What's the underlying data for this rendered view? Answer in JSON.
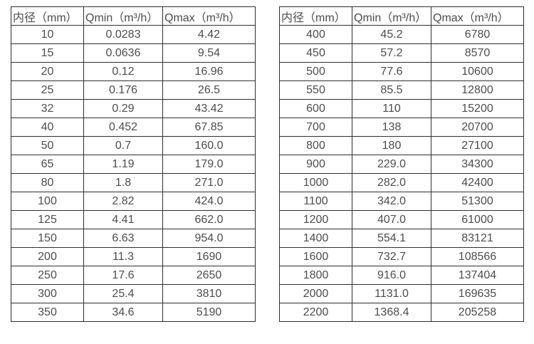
{
  "colors": {
    "background": "#ffffff",
    "border": "#2f2f2f",
    "text": "#4d4d4d"
  },
  "chart_data": [
    {
      "type": "table",
      "title": "",
      "columns": [
        "内径（mm）",
        "Qmin（m³/h）",
        "Qmax（m³/h）"
      ],
      "rows": [
        [
          "10",
          "0.0283",
          "4.42"
        ],
        [
          "15",
          "0.0636",
          "9.54"
        ],
        [
          "20",
          "0.12",
          "16.96"
        ],
        [
          "25",
          "0.176",
          "26.5"
        ],
        [
          "32",
          "0.29",
          "43.42"
        ],
        [
          "40",
          "0.452",
          "67.85"
        ],
        [
          "50",
          "0.7",
          "160.0"
        ],
        [
          "65",
          "1.19",
          "179.0"
        ],
        [
          "80",
          "1.8",
          "271.0"
        ],
        [
          "100",
          "2.82",
          "424.0"
        ],
        [
          "125",
          "4.41",
          "662.0"
        ],
        [
          "150",
          "6.63",
          "954.0"
        ],
        [
          "200",
          "11.3",
          "1690"
        ],
        [
          "250",
          "17.6",
          "2650"
        ],
        [
          "300",
          "25.4",
          "3810"
        ],
        [
          "350",
          "34.6",
          "5190"
        ]
      ]
    },
    {
      "type": "table",
      "title": "",
      "columns": [
        "内径（mm）",
        "Qmin（m³/h）",
        "Qmax（m³/h）"
      ],
      "rows": [
        [
          "400",
          "45.2",
          "6780"
        ],
        [
          "450",
          "57.2",
          "8570"
        ],
        [
          "500",
          "77.6",
          "10600"
        ],
        [
          "550",
          "85.5",
          "12800"
        ],
        [
          "600",
          "110",
          "15200"
        ],
        [
          "700",
          "138",
          "20700"
        ],
        [
          "800",
          "180",
          "27100"
        ],
        [
          "900",
          "229.0",
          "34300"
        ],
        [
          "1000",
          "282.0",
          "42400"
        ],
        [
          "1100",
          "342.0",
          "51300"
        ],
        [
          "1200",
          "407.0",
          "61000"
        ],
        [
          "1400",
          "554.1",
          "83121"
        ],
        [
          "1600",
          "732.7",
          "108566"
        ],
        [
          "1800",
          "916.0",
          "137404"
        ],
        [
          "2000",
          "1131.0",
          "169635"
        ],
        [
          "2200",
          "1368.4",
          "205258"
        ]
      ]
    }
  ]
}
